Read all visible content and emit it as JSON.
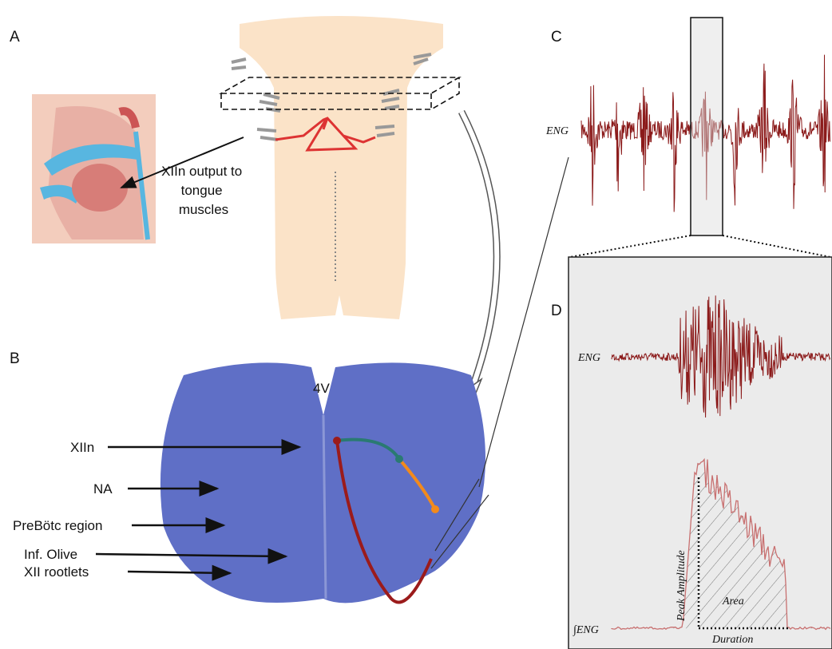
{
  "panels": {
    "a": {
      "label": "A",
      "annotation": [
        "XIIn output to",
        "tongue",
        "muscles"
      ]
    },
    "b": {
      "label": "B",
      "ventricle": "4V",
      "labels": [
        "XIIn",
        "NA",
        "PreBötc region",
        "Inf. Olive",
        "XII rootlets"
      ]
    },
    "c": {
      "label": "C",
      "trace_label": "ENG"
    },
    "d": {
      "label": "D",
      "trace_label": "ENG",
      "integrated_label": "∫ENG",
      "peak": "Peak Amplitude",
      "area": "Area",
      "duration": "Duration"
    }
  }
}
